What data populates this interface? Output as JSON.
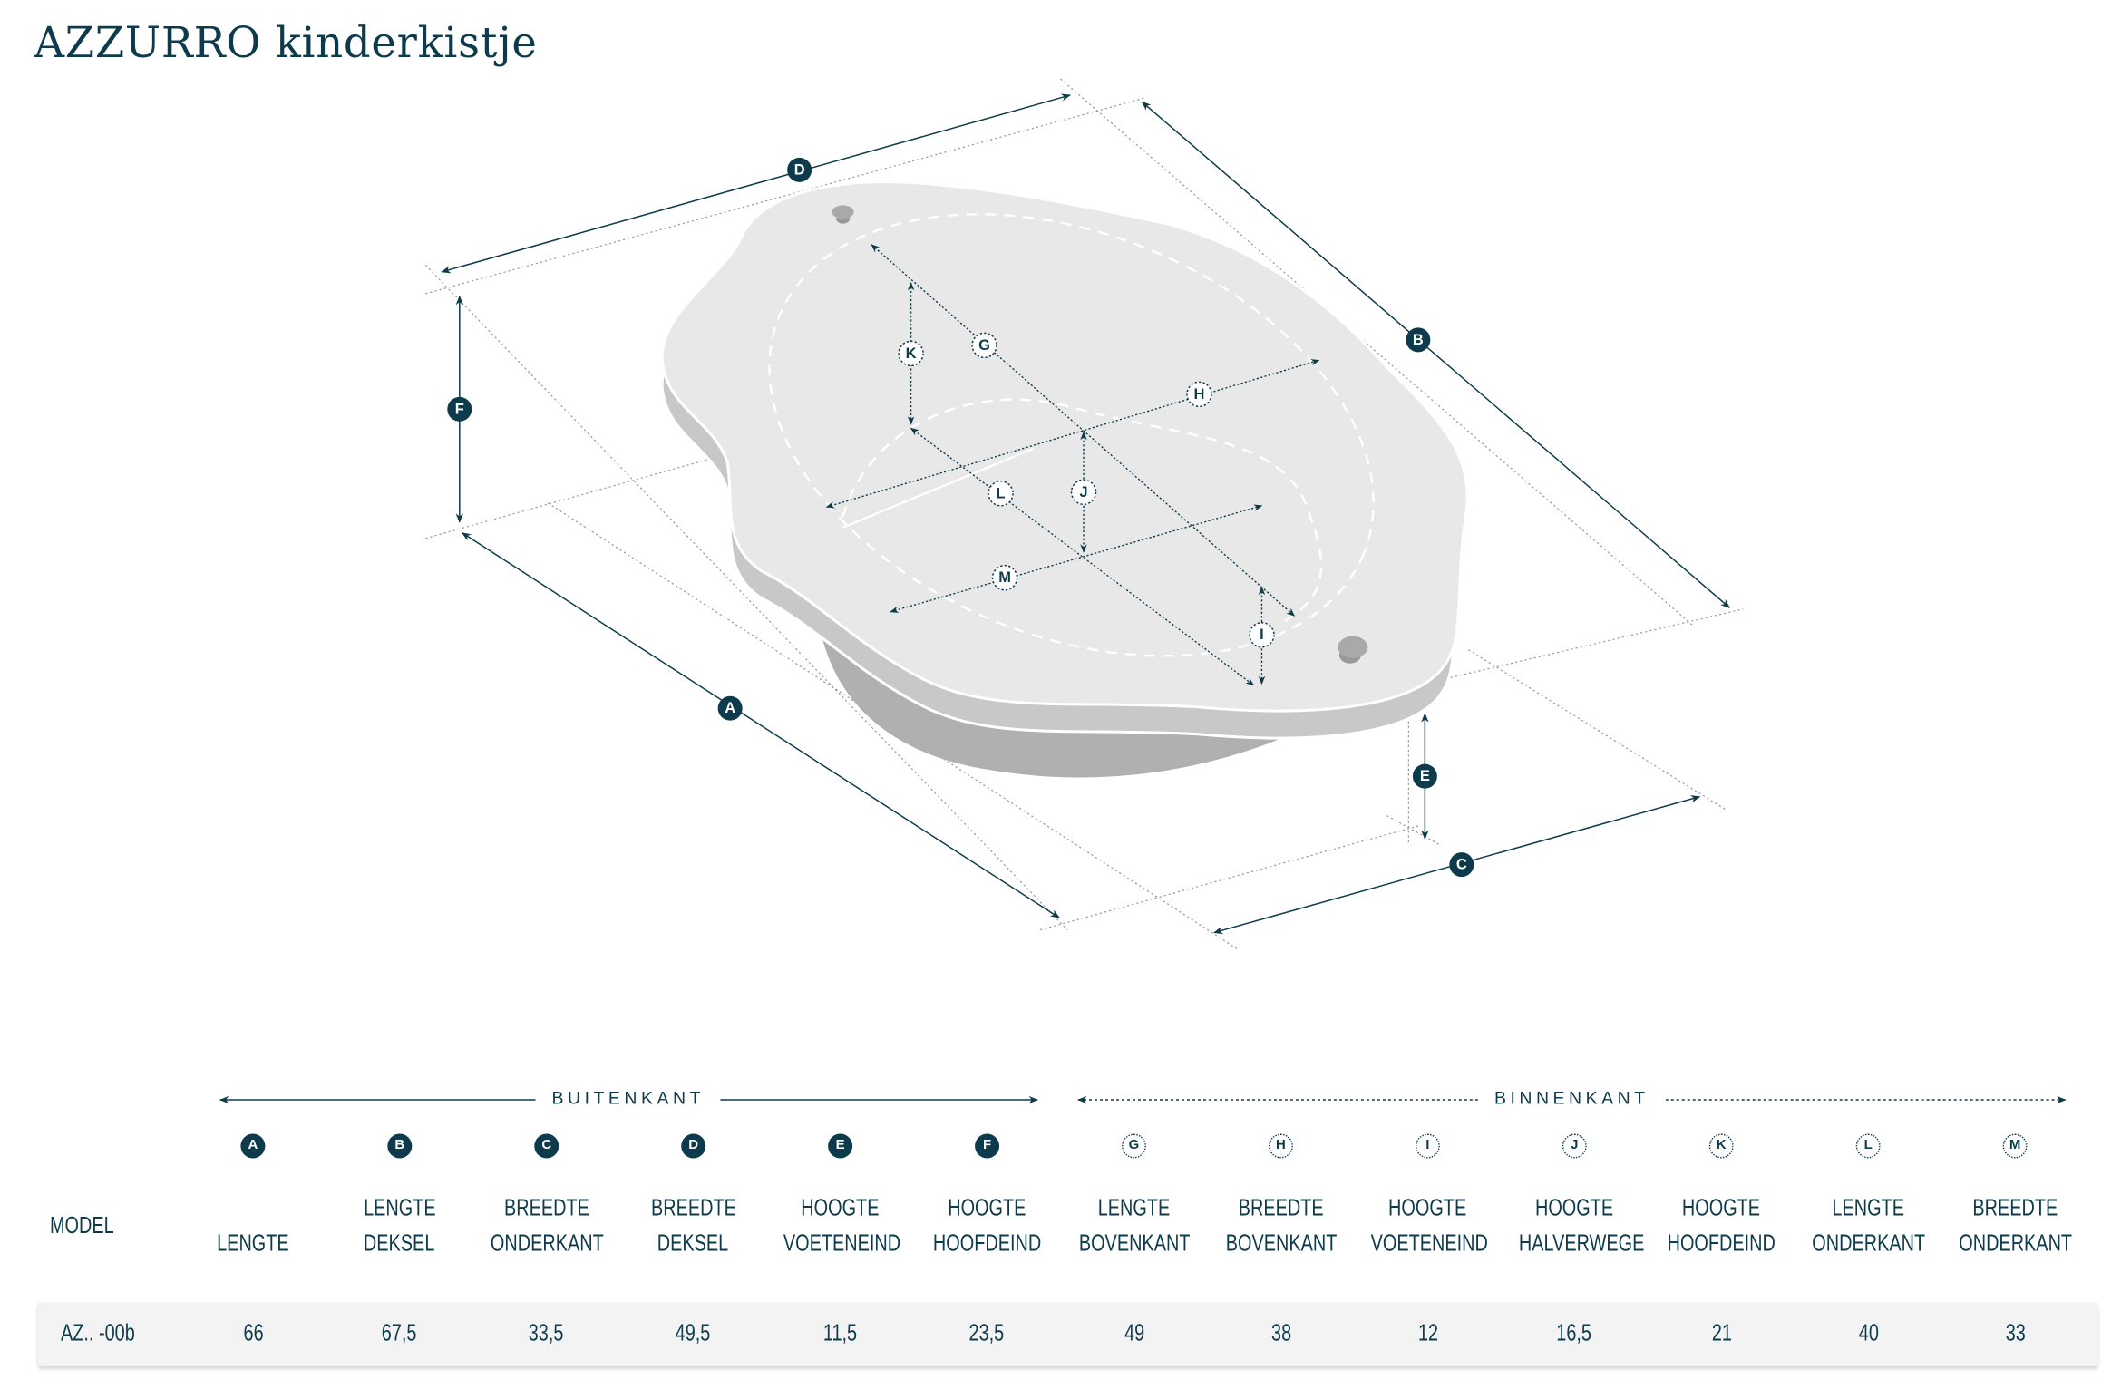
{
  "title": "AZZURRO kinderkistje",
  "colors": {
    "accent": "#0d3b4c",
    "lid_top": "#e8e8e8",
    "lid_side": "#c8c8c8",
    "base": "#b0b0b0",
    "row_bg": "#f3f3f3"
  },
  "diagram": {
    "outer_labels": {
      "A": "A",
      "B": "B",
      "C": "C",
      "D": "D",
      "E": "E",
      "F": "F"
    },
    "inner_labels": {
      "G": "G",
      "H": "H",
      "I": "I",
      "J": "J",
      "K": "K",
      "L": "L",
      "M": "M"
    }
  },
  "table": {
    "group_outer": "BUITENKANT",
    "group_inner": "BINNENKANT",
    "model_header": "MODEL",
    "columns": [
      {
        "letter": "A",
        "line1": "",
        "line2": "LENGTE",
        "value": "66"
      },
      {
        "letter": "B",
        "line1": "LENGTE",
        "line2": "DEKSEL",
        "value": "67,5"
      },
      {
        "letter": "C",
        "line1": "BREEDTE",
        "line2": "ONDERKANT",
        "value": "33,5"
      },
      {
        "letter": "D",
        "line1": "BREEDTE",
        "line2": "DEKSEL",
        "value": "49,5"
      },
      {
        "letter": "E",
        "line1": "HOOGTE",
        "line2": "VOETENEIND",
        "value": "11,5"
      },
      {
        "letter": "F",
        "line1": "HOOGTE",
        "line2": "HOOFDEIND",
        "value": "23,5"
      },
      {
        "letter": "G",
        "line1": "LENGTE",
        "line2": "BOVENKANT",
        "value": "49"
      },
      {
        "letter": "H",
        "line1": "BREEDTE",
        "line2": "BOVENKANT",
        "value": "38"
      },
      {
        "letter": "I",
        "line1": "HOOGTE",
        "line2": "VOETENEIND",
        "value": "12"
      },
      {
        "letter": "J",
        "line1": "HOOGTE",
        "line2": "HALVERWEGE",
        "value": "16,5"
      },
      {
        "letter": "K",
        "line1": "HOOGTE",
        "line2": "HOOFDEIND",
        "value": "21"
      },
      {
        "letter": "L",
        "line1": "LENGTE",
        "line2": "ONDERKANT",
        "value": "40"
      },
      {
        "letter": "M",
        "line1": "BREEDTE",
        "line2": "ONDERKANT",
        "value": "33"
      }
    ],
    "rows": [
      {
        "model": "AZ.. -00b"
      }
    ]
  }
}
